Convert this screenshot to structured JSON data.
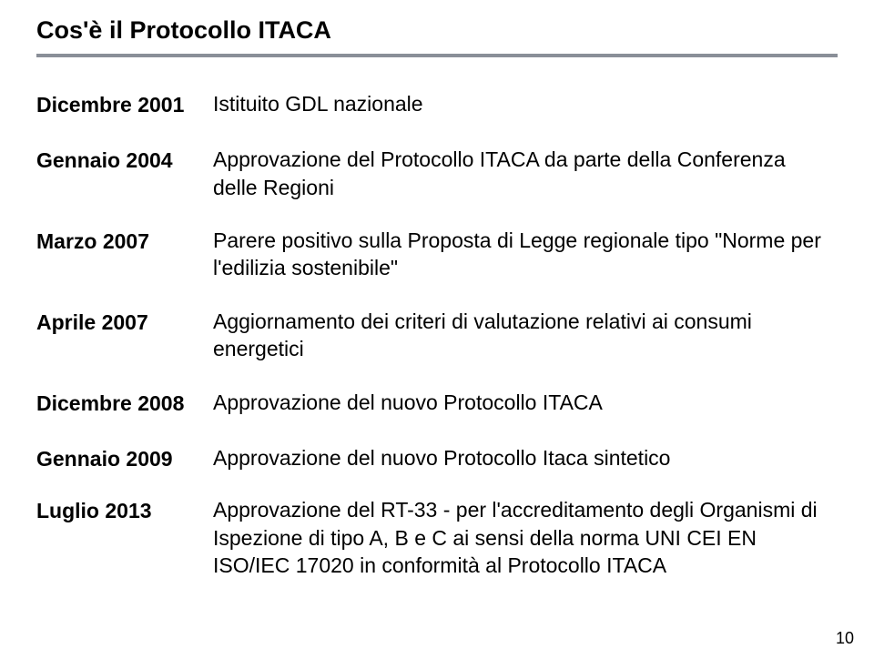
{
  "title": "Cos'è il Protocollo ITACA",
  "timeline": [
    {
      "date": "Dicembre 2001",
      "desc": "Istituito GDL nazionale"
    },
    {
      "date": "Gennaio 2004",
      "desc": "Approvazione del Protocollo ITACA da parte della Conferenza delle Regioni"
    },
    {
      "date": "Marzo 2007",
      "desc": "Parere positivo sulla Proposta di Legge regionale tipo \"Norme per l'edilizia sostenibile\""
    },
    {
      "date": "Aprile 2007",
      "desc": "Aggiornamento dei criteri di valutazione relativi ai consumi energetici"
    },
    {
      "date": "Dicembre 2008",
      "desc": "Approvazione del nuovo Protocollo ITACA"
    },
    {
      "date": "Gennaio 2009",
      "desc": "Approvazione del nuovo Protocollo Itaca sintetico"
    },
    {
      "date": "Luglio 2013",
      "desc": "Approvazione del RT-33 - per l'accreditamento degli Organismi di Ispezione di tipo A, B e C ai sensi della norma UNI CEI EN ISO/IEC 17020 in conformità al Protocollo ITACA"
    }
  ],
  "page_number": "10",
  "colors": {
    "background": "#ffffff",
    "text": "#000000",
    "rule": "#8a8f98"
  },
  "typography": {
    "title_fontsize_pt": 21,
    "body_fontsize_pt": 17,
    "title_weight": "bold",
    "date_weight": "bold",
    "font_family": "Arial"
  }
}
